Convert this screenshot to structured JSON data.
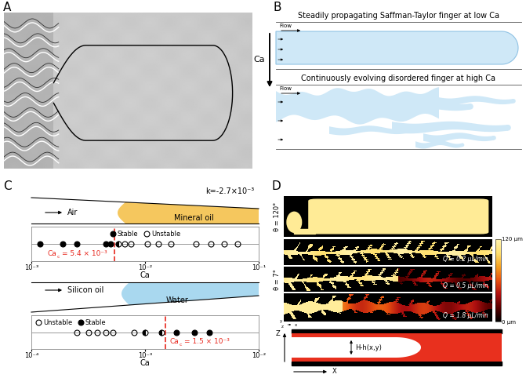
{
  "panels": {
    "A": {
      "label": "A"
    },
    "B": {
      "label": "B",
      "captions": [
        "Steadily propagating Saffman-Taylor finger at low Ca",
        "Continuously evolving disordered finger at high Ca"
      ],
      "flow": "Flow",
      "arrow_label": "Ca"
    },
    "C": {
      "label": "C"
    },
    "D": {
      "label": "D",
      "contact_angles": [
        "θ = 120°",
        "θ = 7°"
      ],
      "flow_rates": [
        "Q = 0.2 μL/min",
        "Q = 0.5 μL/min",
        "Q = 1.8 μL/min"
      ],
      "colorbar": {
        "range": [
          0,
          120
        ],
        "ticks": [
          {
            "value": 0,
            "label": "0 μm"
          },
          {
            "value": 120,
            "label": "120 μm"
          }
        ]
      },
      "axes_triad": [
        "x",
        "y",
        "z"
      ],
      "schematic": {
        "gap_label": "H-h(x,y)",
        "vertical_axis": "Z",
        "horizontal_axis": "X"
      }
    }
  },
  "chart_data": [
    {
      "type": "scatter",
      "log": "x",
      "xlabel": "Ca",
      "xlim": [
        0.001,
        0.1
      ],
      "xticks": [
        {
          "value": 0.001,
          "label": "10⁻³"
        },
        {
          "value": 0.01,
          "label": "10⁻²"
        },
        {
          "value": 0.1,
          "label": "10⁻¹"
        }
      ],
      "tick_labels": "x",
      "legend": "upper center",
      "series": [
        {
          "name": "Stable",
          "color": "#000000",
          "marker": "filled",
          "x": [
            0.0012,
            0.0019,
            0.0025,
            0.0045,
            0.005
          ]
        },
        {
          "name": "Unstable",
          "color": "#000000",
          "marker": "open",
          "x": [
            0.0066,
            0.0075,
            0.0105,
            0.013,
            0.017,
            0.028,
            0.038,
            0.05,
            0.065
          ]
        },
        {
          "color": "#000000",
          "marker": "half",
          "x": [
            0.0058
          ]
        }
      ],
      "threshold": {
        "value": 0.0054,
        "symbol": "Ca",
        "subscript": "c",
        "text": "= 5.4 × 10⁻³",
        "color": "#e8261c"
      },
      "schematic": {
        "invading": "Air",
        "defending": "Mineral oil",
        "slope": "k=-2.7×10⁻³",
        "color": "#f5c75e"
      }
    },
    {
      "type": "scatter",
      "log": "x",
      "xlabel": "Ca",
      "xlim": [
        0.0001,
        0.01
      ],
      "xticks": [
        {
          "value": 0.0001,
          "label": "10⁻⁴"
        },
        {
          "value": 0.001,
          "label": "10⁻³"
        },
        {
          "value": 0.01,
          "label": "10⁻²"
        }
      ],
      "tick_labels": "x",
      "legend": "upper left",
      "series": [
        {
          "name": "Unstable",
          "color": "#000000",
          "marker": "open",
          "x": [
            0.00025,
            0.00032,
            0.00038,
            0.00045,
            0.00052,
            0.0008
          ]
        },
        {
          "name": "Stable",
          "color": "#000000",
          "marker": "filled",
          "x": [
            0.0019,
            0.0027,
            0.0037
          ]
        },
        {
          "color": "#000000",
          "marker": "half",
          "x": [
            0.001,
            0.0014
          ]
        }
      ],
      "threshold": {
        "value": 0.0015,
        "symbol": "Ca",
        "subscript": "c",
        "text": "= 1.5 × 10⁻³",
        "color": "#e8261c"
      },
      "schematic": {
        "invading": "Silicon oil",
        "defending": "Water",
        "color": "#a9d8ef"
      }
    }
  ]
}
